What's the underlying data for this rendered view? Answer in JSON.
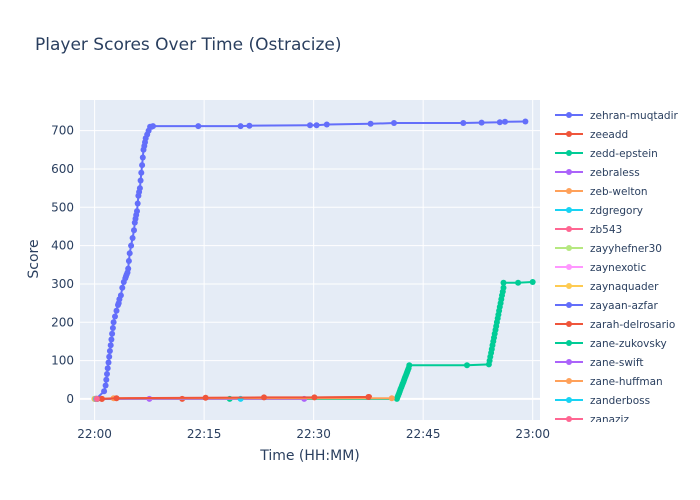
{
  "chart_data": {
    "type": "line",
    "title": "Player Scores Over Time (Ostracize)",
    "xlabel": "Time (HH:MM)",
    "ylabel": "Score",
    "x_ticks": [
      "22:00",
      "22:15",
      "22:30",
      "22:45",
      "23:00"
    ],
    "x_tick_minutes": [
      0,
      15,
      30,
      45,
      60
    ],
    "xlim_minutes": [
      -2,
      61
    ],
    "y_ticks": [
      0,
      100,
      200,
      300,
      400,
      500,
      600,
      700
    ],
    "ylim": [
      -55,
      780
    ],
    "grid": true,
    "legend_position": "right",
    "series": [
      {
        "name": "zehran-muqtadir",
        "color": "#636efa",
        "x": [
          0.2,
          1.3,
          1.5,
          1.6,
          1.7,
          1.8,
          1.9,
          2.0,
          2.1,
          2.2,
          2.3,
          2.4,
          2.5,
          2.6,
          2.8,
          3.0,
          3.2,
          3.3,
          3.4,
          3.6,
          3.8,
          4.0,
          4.2,
          4.3,
          4.4,
          4.5,
          4.6,
          4.7,
          4.8,
          5.0,
          5.2,
          5.4,
          5.5,
          5.6,
          5.7,
          5.8,
          5.9,
          6.0,
          6.1,
          6.2,
          6.3,
          6.4,
          6.5,
          6.6,
          6.7,
          6.8,
          6.9,
          7.0,
          7.2,
          7.4,
          7.6,
          7.8,
          8.0,
          14.2,
          20.0,
          21.2,
          29.5,
          30.4,
          31.8,
          37.8,
          41.0,
          50.5,
          53.0,
          55.5,
          56.2,
          59.0
        ],
        "y": [
          0,
          20,
          35,
          50,
          65,
          80,
          95,
          110,
          125,
          140,
          155,
          170,
          185,
          200,
          215,
          230,
          245,
          250,
          260,
          270,
          290,
          305,
          315,
          320,
          325,
          330,
          340,
          360,
          380,
          400,
          420,
          440,
          460,
          470,
          480,
          490,
          510,
          530,
          540,
          550,
          570,
          590,
          610,
          630,
          650,
          660,
          670,
          680,
          690,
          700,
          710,
          710,
          712,
          712,
          712,
          713,
          714,
          714,
          716,
          718,
          720,
          720,
          721,
          722,
          723,
          724
        ]
      },
      {
        "name": "zeeadd",
        "color": "#ef553b",
        "x": [
          1.0,
          12.0,
          37.6
        ],
        "y": [
          0,
          0,
          5
        ]
      },
      {
        "name": "zedd-epstein",
        "color": "#00cc96",
        "x": [
          0.0,
          18.5,
          41.4,
          41.5,
          41.6,
          41.7,
          41.8,
          41.9,
          42.0,
          42.1,
          42.2,
          42.3,
          42.4,
          42.5,
          42.6,
          42.7,
          42.8,
          42.9,
          43.0,
          43.1,
          51.0,
          54.0,
          54.1,
          54.2,
          54.3,
          54.4,
          54.5,
          54.6,
          54.7,
          54.8,
          54.9,
          55.0,
          55.1,
          55.2,
          55.3,
          55.4,
          55.5,
          55.6,
          55.7,
          55.8,
          55.9,
          56.0,
          56.0,
          58.0,
          60.0
        ],
        "y": [
          0,
          0,
          0,
          5,
          10,
          15,
          20,
          25,
          30,
          35,
          40,
          45,
          50,
          55,
          60,
          65,
          70,
          75,
          80,
          88,
          88,
          90,
          100,
          110,
          120,
          130,
          140,
          150,
          160,
          170,
          180,
          190,
          200,
          210,
          220,
          230,
          240,
          250,
          260,
          270,
          280,
          290,
          303,
          303,
          305
        ]
      },
      {
        "name": "zebraless",
        "color": "#ab63fa",
        "x": [
          0.1,
          7.5,
          28.7
        ],
        "y": [
          0,
          0,
          0
        ]
      },
      {
        "name": "zeb-welton",
        "color": "#ffa15a",
        "x": [
          0.1,
          2.6,
          40.7
        ],
        "y": [
          0,
          2,
          2
        ]
      },
      {
        "name": "zdgregory",
        "color": "#19d3f3",
        "x": [
          20.0
        ],
        "y": [
          0
        ]
      },
      {
        "name": "zb543",
        "color": "#ff6692",
        "x": [
          0.3
        ],
        "y": [
          0
        ]
      },
      {
        "name": "zayyhefner30",
        "color": "#b6e880",
        "x": [
          0.2
        ],
        "y": [
          0
        ]
      },
      {
        "name": "zaynexotic",
        "color": "#ff97ff",
        "x": [
          0.1
        ],
        "y": [
          0
        ]
      },
      {
        "name": "zaynaquader",
        "color": "#fecb52",
        "x": [
          0.0
        ],
        "y": [
          0
        ]
      },
      {
        "name": "zayaan-azfar",
        "color": "#636efa",
        "x": [
          0.2
        ],
        "y": [
          0
        ]
      },
      {
        "name": "zarah-delrosario",
        "color": "#ef553b",
        "x": [
          0.4,
          1.0,
          3.0,
          15.2,
          23.2,
          30.1,
          37.5
        ],
        "y": [
          0,
          0,
          2,
          3,
          4,
          4,
          5
        ]
      },
      {
        "name": "zane-zukovsky",
        "color": "#00cc96",
        "x": [
          0.3
        ],
        "y": [
          0
        ]
      },
      {
        "name": "zane-swift",
        "color": "#ab63fa",
        "x": [
          0.2
        ],
        "y": [
          0
        ]
      },
      {
        "name": "zane-huffman",
        "color": "#ffa15a",
        "x": [
          0.1
        ],
        "y": [
          0
        ]
      },
      {
        "name": "zanderboss",
        "color": "#19d3f3",
        "x": [
          0.2
        ],
        "y": [
          0
        ]
      },
      {
        "name": "zanaziz",
        "color": "#ff6692",
        "x": [
          0.3
        ],
        "y": [
          0
        ]
      }
    ]
  }
}
